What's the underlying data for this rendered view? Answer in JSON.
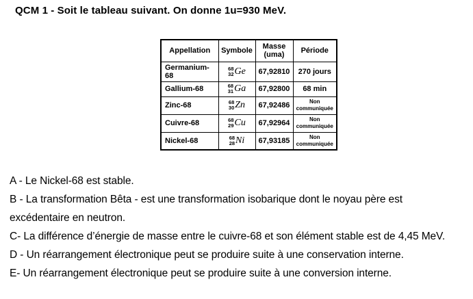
{
  "title": "QCM 1 - Soit le tableau suivant. On donne 1u=930 MeV.",
  "table": {
    "headers": [
      "Appellation",
      "Symbole",
      "Masse (uma)",
      "Période"
    ],
    "rows": [
      {
        "appellation": "Germanium-68",
        "mass_number": "68",
        "atomic_number": "32",
        "element": "Ge",
        "masse": "67,92810",
        "periode": "270 jours"
      },
      {
        "appellation": "Gallium-68",
        "mass_number": "68",
        "atomic_number": "31",
        "element": "Ga",
        "masse": "67,92800",
        "periode": "68 min"
      },
      {
        "appellation": "Zinc-68",
        "mass_number": "68",
        "atomic_number": "30",
        "element": "Zn",
        "masse": "67,92486",
        "periode": "Non communiquée"
      },
      {
        "appellation": "Cuivre-68",
        "mass_number": "68",
        "atomic_number": "29",
        "element": "Cu",
        "masse": "67,92964",
        "periode": "Non communiquée"
      },
      {
        "appellation": "Nickel-68",
        "mass_number": "68",
        "atomic_number": "28",
        "element": "Ni",
        "masse": "67,93185",
        "periode": "Non communiquée"
      }
    ]
  },
  "options": [
    "A - Le Nickel-68 est stable.",
    "B - La transformation Bêta - est une transformation isobarique dont le noyau père est excédentaire en neutron.",
    "C- La différence d’énergie de masse entre le cuivre-68 et son élément stable est de 4,45 MeV.",
    "D - Un réarrangement électronique peut se produire suite à une conservation interne.",
    "E- Un réarrangement électronique peut se produire suite à une conversion interne."
  ],
  "colors": {
    "text": "#000000",
    "background": "#ffffff",
    "table_border": "#000000"
  }
}
